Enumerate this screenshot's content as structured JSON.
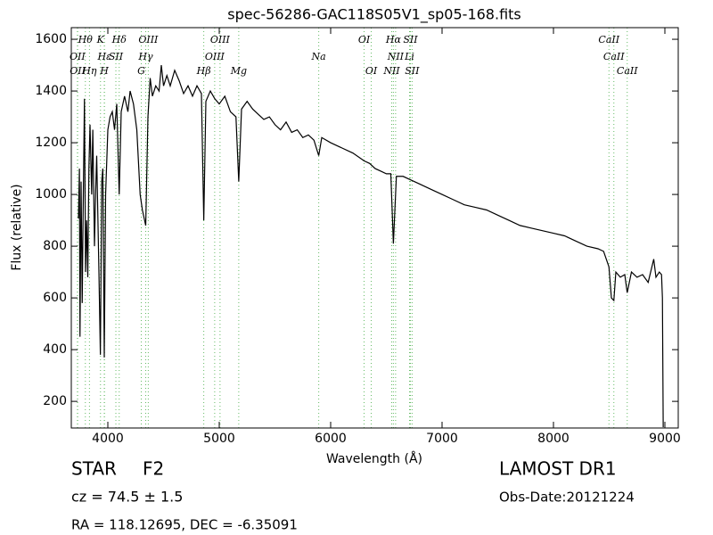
{
  "chart_data": {
    "type": "line",
    "title": "spec-56286-GAC118S05V1_sp05-168.fits",
    "x_label": "Wavelength (Å)",
    "y_label": "Flux (relative)",
    "xlim": [
      3672,
      9120
    ],
    "ylim": [
      97,
      1645
    ],
    "xticks": [
      4000,
      5000,
      6000,
      7000,
      8000,
      9000
    ],
    "yticks": [
      200,
      400,
      600,
      800,
      1000,
      1200,
      1400,
      1600
    ],
    "color": "#000000",
    "line_color": "#66bb66",
    "x": [
      3736,
      3745,
      3750,
      3760,
      3770,
      3780,
      3790,
      3800,
      3810,
      3820,
      3830,
      3840,
      3855,
      3865,
      3880,
      3890,
      3900,
      3920,
      3933,
      3945,
      3955,
      3968,
      3980,
      4000,
      4020,
      4040,
      4060,
      4080,
      4102,
      4120,
      4150,
      4180,
      4200,
      4230,
      4260,
      4290,
      4310,
      4340,
      4360,
      4380,
      4400,
      4430,
      4460,
      4480,
      4500,
      4530,
      4560,
      4600,
      4640,
      4680,
      4720,
      4760,
      4800,
      4840,
      4861,
      4880,
      4920,
      4960,
      5000,
      5050,
      5100,
      5150,
      5175,
      5200,
      5250,
      5300,
      5350,
      5400,
      5450,
      5500,
      5550,
      5600,
      5650,
      5700,
      5750,
      5800,
      5850,
      5893,
      5920,
      6000,
      6100,
      6200,
      6300,
      6350,
      6400,
      6450,
      6500,
      6540,
      6563,
      6590,
      6650,
      6700,
      6750,
      6800,
      6900,
      7000,
      7100,
      7200,
      7300,
      7400,
      7500,
      7600,
      7700,
      7800,
      7900,
      8000,
      8100,
      8200,
      8300,
      8400,
      8450,
      8498,
      8520,
      8542,
      8560,
      8600,
      8640,
      8662,
      8700,
      8750,
      8800,
      8850,
      8900,
      8920,
      8950,
      8970,
      8978,
      8985
    ],
    "values": [
      907,
      1100,
      450,
      1050,
      580,
      1000,
      1370,
      700,
      900,
      680,
      1100,
      1270,
      1000,
      1250,
      800,
      1000,
      1150,
      700,
      380,
      1050,
      1100,
      370,
      1000,
      1250,
      1300,
      1320,
      1250,
      1350,
      1000,
      1320,
      1380,
      1320,
      1400,
      1350,
      1250,
      1000,
      940,
      880,
      1300,
      1450,
      1380,
      1420,
      1400,
      1500,
      1420,
      1460,
      1420,
      1480,
      1440,
      1390,
      1420,
      1380,
      1420,
      1390,
      900,
      1360,
      1400,
      1370,
      1350,
      1380,
      1320,
      1300,
      1050,
      1330,
      1360,
      1330,
      1310,
      1290,
      1300,
      1270,
      1250,
      1280,
      1240,
      1250,
      1220,
      1230,
      1210,
      1150,
      1220,
      1200,
      1180,
      1160,
      1130,
      1120,
      1100,
      1090,
      1080,
      1080,
      810,
      1070,
      1070,
      1060,
      1050,
      1040,
      1020,
      1000,
      980,
      960,
      950,
      940,
      920,
      900,
      880,
      870,
      860,
      850,
      840,
      820,
      800,
      790,
      780,
      720,
      600,
      590,
      700,
      680,
      690,
      620,
      700,
      680,
      690,
      660,
      750,
      680,
      700,
      690,
      600,
      100
    ],
    "line_groups": [
      [
        {
          "name": "Hθ",
          "wavelength": 3798
        },
        {
          "name": "K",
          "wavelength": 3934
        },
        {
          "name": "Hδ",
          "wavelength": 4102
        },
        {
          "name": "OIII",
          "wavelength": 4363
        },
        {
          "name": "OIII",
          "wavelength": 5007
        },
        {
          "name": "OI",
          "wavelength": 6300
        },
        {
          "name": "Hα",
          "wavelength": 6563
        },
        {
          "name": "SII",
          "wavelength": 6716
        },
        {
          "name": "CaII",
          "wavelength": 8498
        }
      ],
      [
        {
          "name": "OII",
          "wavelength": 3727
        },
        {
          "name": "Hε",
          "wavelength": 3970
        },
        {
          "name": "SII",
          "wavelength": 4072
        },
        {
          "name": "Hγ",
          "wavelength": 4340
        },
        {
          "name": "OIII",
          "wavelength": 4959
        },
        {
          "name": "Na",
          "wavelength": 5893
        },
        {
          "name": "NII",
          "wavelength": 6583
        },
        {
          "name": "Li",
          "wavelength": 6708
        },
        {
          "name": "CaII",
          "wavelength": 8542
        }
      ],
      [
        {
          "name": "OII",
          "wavelength": 3729
        },
        {
          "name": "Hη",
          "wavelength": 3835
        },
        {
          "name": "H",
          "wavelength": 3968
        },
        {
          "name": "G",
          "wavelength": 4300
        },
        {
          "name": "Hβ",
          "wavelength": 4861
        },
        {
          "name": "Mg",
          "wavelength": 5175
        },
        {
          "name": "OI",
          "wavelength": 6364
        },
        {
          "name": "NII",
          "wavelength": 6548
        },
        {
          "name": "SII",
          "wavelength": 6731
        },
        {
          "name": "CaII",
          "wavelength": 8662
        }
      ]
    ],
    "object_class": "STAR",
    "subclass": "F2",
    "redshift": "cz = 74.5 ± 1.5",
    "coordinates": "RA = 118.12695, DEC = -6.35091",
    "survey": "LAMOST DR1",
    "obs_date": "Obs-Date:20121224"
  }
}
